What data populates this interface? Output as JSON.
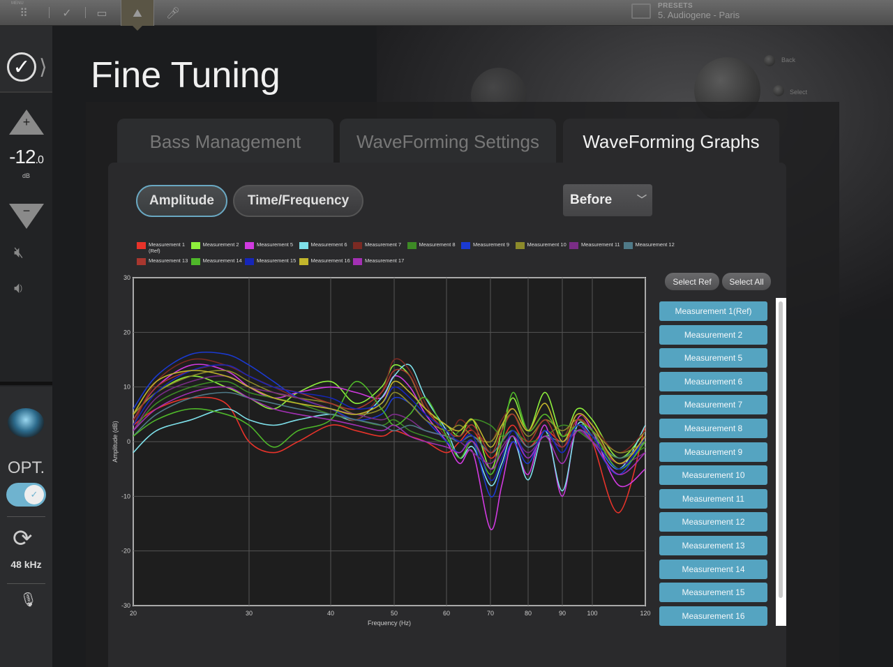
{
  "topbar": {
    "menu_label": "MENU",
    "presets_label": "PRESETS",
    "preset_value": "5. Audiogene - Paris"
  },
  "device": {
    "back": "Back",
    "select": "Select"
  },
  "sidebar": {
    "volume_main": "-12",
    "volume_decimal": ".0",
    "volume_unit": "dB",
    "opt_label": "OPT.",
    "sample_rate": "48 kHz"
  },
  "page_title": "Fine Tuning",
  "tabs": [
    {
      "label": "Bass Management"
    },
    {
      "label": "WaveForming Settings"
    },
    {
      "label": "WaveForming Graphs"
    }
  ],
  "view_buttons": {
    "amplitude": "Amplitude",
    "time_frequency": "Time/Frequency"
  },
  "dropdown": {
    "value": "Before"
  },
  "list_buttons": {
    "select_ref": "Select Ref",
    "select_all": "Select All"
  },
  "measurement_list": [
    "Measurement 1(Ref)",
    "Measurement 2",
    "Measurement 5",
    "Measurement 6",
    "Measurement 7",
    "Measurement 8",
    "Measurement 9",
    "Measurement 10",
    "Measurement 11",
    "Measurement 12",
    "Measurement 13",
    "Measurement 14",
    "Measurement 15",
    "Measurement 16"
  ],
  "colors": {
    "accent": "#55a4c1",
    "panel": "#2a2a2c",
    "plot_bg": "#1e1e1e"
  },
  "chart_data": {
    "type": "line",
    "xlabel": "Frequency (Hz)",
    "ylabel": "Amplitude (dB)",
    "xlim": [
      20,
      120
    ],
    "ylim": [
      -30,
      30
    ],
    "x_ticks": [
      20,
      30,
      40,
      50,
      60,
      70,
      80,
      90,
      100,
      120
    ],
    "y_ticks": [
      30,
      20,
      10,
      0,
      -10,
      -20,
      -30
    ],
    "grid": true,
    "legend_position": "top",
    "x": [
      20,
      22,
      25,
      28,
      30,
      33,
      36,
      40,
      44,
      48,
      50,
      53,
      56,
      60,
      63,
      66,
      70,
      73,
      76,
      80,
      85,
      90,
      95,
      100,
      110,
      120
    ],
    "series": [
      {
        "name": "Measurement 1 (Ref)",
        "color": "#e8332a",
        "values": [
          3,
          6,
          8,
          7,
          0,
          -2,
          0,
          3,
          2,
          1,
          2,
          1,
          0,
          -2,
          0,
          2,
          -3,
          0,
          3,
          -1,
          2,
          0,
          3,
          0,
          -13,
          3
        ]
      },
      {
        "name": "Measurement 2",
        "color": "#8ef03c",
        "values": [
          5,
          9,
          12,
          10,
          8,
          6,
          9,
          11,
          7,
          10,
          14,
          12,
          6,
          3,
          1,
          4,
          -5,
          2,
          8,
          2,
          9,
          1,
          6,
          4,
          -3,
          2
        ]
      },
      {
        "name": "Measurement 5",
        "color": "#d13ae0",
        "values": [
          4,
          10,
          14,
          13,
          10,
          8,
          9,
          10,
          9,
          8,
          12,
          10,
          5,
          0,
          -4,
          -2,
          -16,
          -8,
          0,
          -6,
          3,
          -10,
          4,
          2,
          -8,
          -5
        ]
      },
      {
        "name": "Measurement 6",
        "color": "#7ee0ea",
        "values": [
          -2,
          2,
          4,
          6,
          4,
          3,
          4,
          5,
          4,
          8,
          12,
          14,
          8,
          2,
          -3,
          -1,
          -8,
          -4,
          1,
          -7,
          2,
          -9,
          3,
          1,
          -5,
          3
        ]
      },
      {
        "name": "Measurement 7",
        "color": "#7b2a23",
        "values": [
          3,
          11,
          15,
          14,
          12,
          10,
          8,
          6,
          4,
          9,
          15,
          13,
          7,
          1,
          4,
          2,
          0,
          4,
          6,
          2,
          5,
          1,
          5,
          3,
          -2,
          2
        ]
      },
      {
        "name": "Measurement 8",
        "color": "#3d8a25",
        "values": [
          2,
          7,
          10,
          11,
          9,
          8,
          7,
          5,
          4,
          3,
          4,
          2,
          1,
          0,
          2,
          4,
          3,
          1,
          2,
          0,
          1,
          3,
          2,
          0,
          -3,
          -1
        ]
      },
      {
        "name": "Measurement 9",
        "color": "#1b3ad1",
        "values": [
          6,
          12,
          16,
          16,
          14,
          11,
          8,
          6,
          4,
          5,
          8,
          7,
          4,
          0,
          -2,
          0,
          -10,
          -5,
          0,
          -4,
          2,
          -2,
          3,
          0,
          -6,
          1
        ]
      },
      {
        "name": "Measurement 10",
        "color": "#8c8a2a",
        "values": [
          5,
          9,
          12,
          13,
          11,
          9,
          8,
          7,
          5,
          6,
          9,
          7,
          4,
          2,
          3,
          1,
          0,
          3,
          5,
          1,
          4,
          2,
          4,
          2,
          -2,
          0
        ]
      },
      {
        "name": "Measurement 11",
        "color": "#7a2d86",
        "values": [
          2,
          8,
          11,
          12,
          10,
          9,
          8,
          6,
          5,
          4,
          5,
          4,
          2,
          1,
          0,
          -2,
          -4,
          -1,
          1,
          -2,
          1,
          -1,
          2,
          0,
          -4,
          -2
        ]
      },
      {
        "name": "Measurement 12",
        "color": "#4f7a88",
        "values": [
          1,
          5,
          8,
          9,
          8,
          7,
          6,
          5,
          4,
          3,
          2,
          3,
          2,
          1,
          0,
          1,
          -2,
          0,
          2,
          -1,
          1,
          0,
          2,
          1,
          -3,
          0
        ]
      },
      {
        "name": "Measurement 13",
        "color": "#a8372f",
        "values": [
          4,
          10,
          13,
          14,
          12,
          10,
          9,
          7,
          6,
          9,
          13,
          12,
          6,
          2,
          1,
          3,
          -2,
          2,
          5,
          0,
          4,
          -1,
          4,
          2,
          -4,
          1
        ]
      },
      {
        "name": "Measurement 14",
        "color": "#4fb82a",
        "values": [
          1,
          4,
          6,
          5,
          3,
          -1,
          2,
          4,
          11,
          6,
          3,
          5,
          8,
          1,
          -3,
          0,
          -6,
          0,
          9,
          2,
          5,
          1,
          3,
          2,
          -5,
          0
        ]
      },
      {
        "name": "Measurement 15",
        "color": "#1626b8",
        "values": [
          3,
          9,
          13,
          14,
          12,
          10,
          9,
          8,
          6,
          7,
          10,
          8,
          5,
          2,
          0,
          1,
          -7,
          -3,
          2,
          -3,
          2,
          -2,
          3,
          1,
          -5,
          1
        ]
      },
      {
        "name": "Measurement 16",
        "color": "#c2b62c",
        "values": [
          5,
          11,
          13,
          12,
          10,
          8,
          7,
          6,
          5,
          7,
          11,
          9,
          6,
          3,
          2,
          4,
          -1,
          3,
          6,
          2,
          7,
          0,
          5,
          3,
          -4,
          1
        ]
      },
      {
        "name": "Measurement 17",
        "color": "#a330b4",
        "values": [
          2,
          6,
          9,
          10,
          8,
          6,
          5,
          4,
          3,
          2,
          3,
          1,
          0,
          -1,
          -2,
          0,
          -5,
          -2,
          1,
          -3,
          1,
          -4,
          2,
          0,
          -6,
          -2
        ]
      }
    ]
  }
}
